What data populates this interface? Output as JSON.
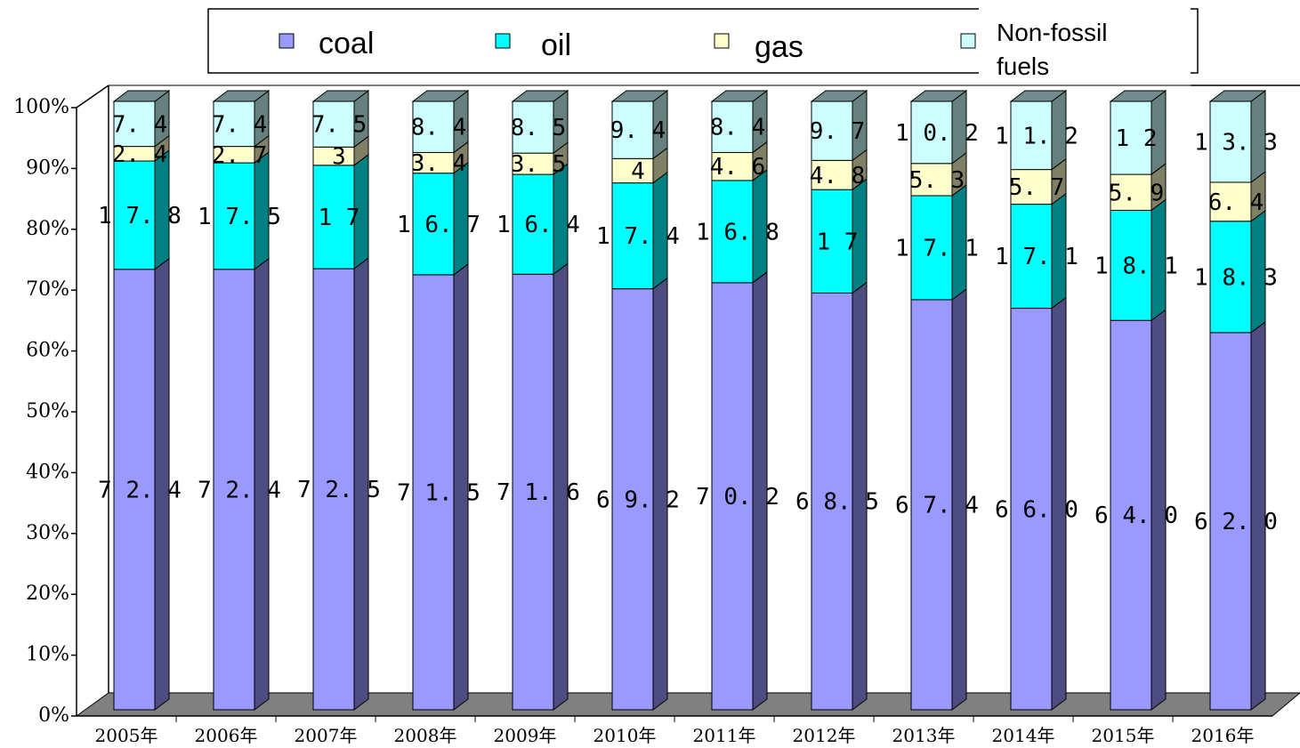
{
  "chart_data": {
    "type": "bar",
    "stacked": true,
    "percent": true,
    "categories": [
      "2005年",
      "2006年",
      "2007年",
      "2008年",
      "2009年",
      "2010年",
      "2011年",
      "2012年",
      "2013年",
      "2014年",
      "2015年",
      "2016年"
    ],
    "series": [
      {
        "name": "coal",
        "color": "#9999ff",
        "values": [
          72.4,
          72.4,
          72.5,
          71.5,
          71.6,
          69.2,
          70.2,
          68.5,
          67.4,
          66.0,
          64.0,
          62.0
        ],
        "labels": [
          "72.4",
          "72.4",
          "72.5",
          "71.5",
          "71.6",
          "69.2",
          "70.2",
          "68.5",
          "67.4",
          "66.0",
          "64.0",
          "62.0"
        ]
      },
      {
        "name": "oil",
        "color": "#00ffff",
        "values": [
          17.8,
          17.5,
          17,
          16.7,
          16.4,
          17.4,
          16.8,
          17,
          17.1,
          17.1,
          18.1,
          18.3
        ],
        "labels": [
          "17.8",
          "17.5",
          "17",
          "16.7",
          "16.4",
          "17.4",
          "16.8",
          "17",
          "17.1",
          "17.1",
          "18.1",
          "18.3"
        ]
      },
      {
        "name": "gas",
        "color": "#ffffcc",
        "values": [
          2.4,
          2.7,
          3,
          3.4,
          3.5,
          4,
          4.6,
          4.8,
          5.3,
          5.7,
          5.9,
          6.4
        ],
        "labels": [
          "2.4",
          "2.7",
          "3",
          "3.4",
          "3.5",
          "4",
          "4.6",
          "4.8",
          "5.3",
          "5.7",
          "5.9",
          "6.4"
        ]
      },
      {
        "name": "Non-fossil fuels",
        "color": "#ccffff",
        "values": [
          7.4,
          7.4,
          7.5,
          8.4,
          8.5,
          9.4,
          8.4,
          9.7,
          10.2,
          11.2,
          12,
          13.3
        ],
        "labels": [
          "7.4",
          "7.4",
          "7.5",
          "8.4",
          "8.5",
          "9.4",
          "8.4",
          "9.7",
          "10.2",
          "11.2",
          "12",
          "13.3"
        ]
      }
    ],
    "yticks": [
      "0%",
      "10%",
      "20%",
      "30%",
      "40%",
      "50%",
      "60%",
      "70%",
      "80%",
      "90%",
      "100%"
    ],
    "ylim": [
      0,
      100
    ],
    "legend_position": "top",
    "grid": false,
    "style": "3d-stacked-column"
  },
  "legend": {
    "coal": "coal",
    "oil": "oil",
    "gas": "gas",
    "nonfossil_line1": "Non-fossil",
    "nonfossil_line2": "fuels"
  }
}
